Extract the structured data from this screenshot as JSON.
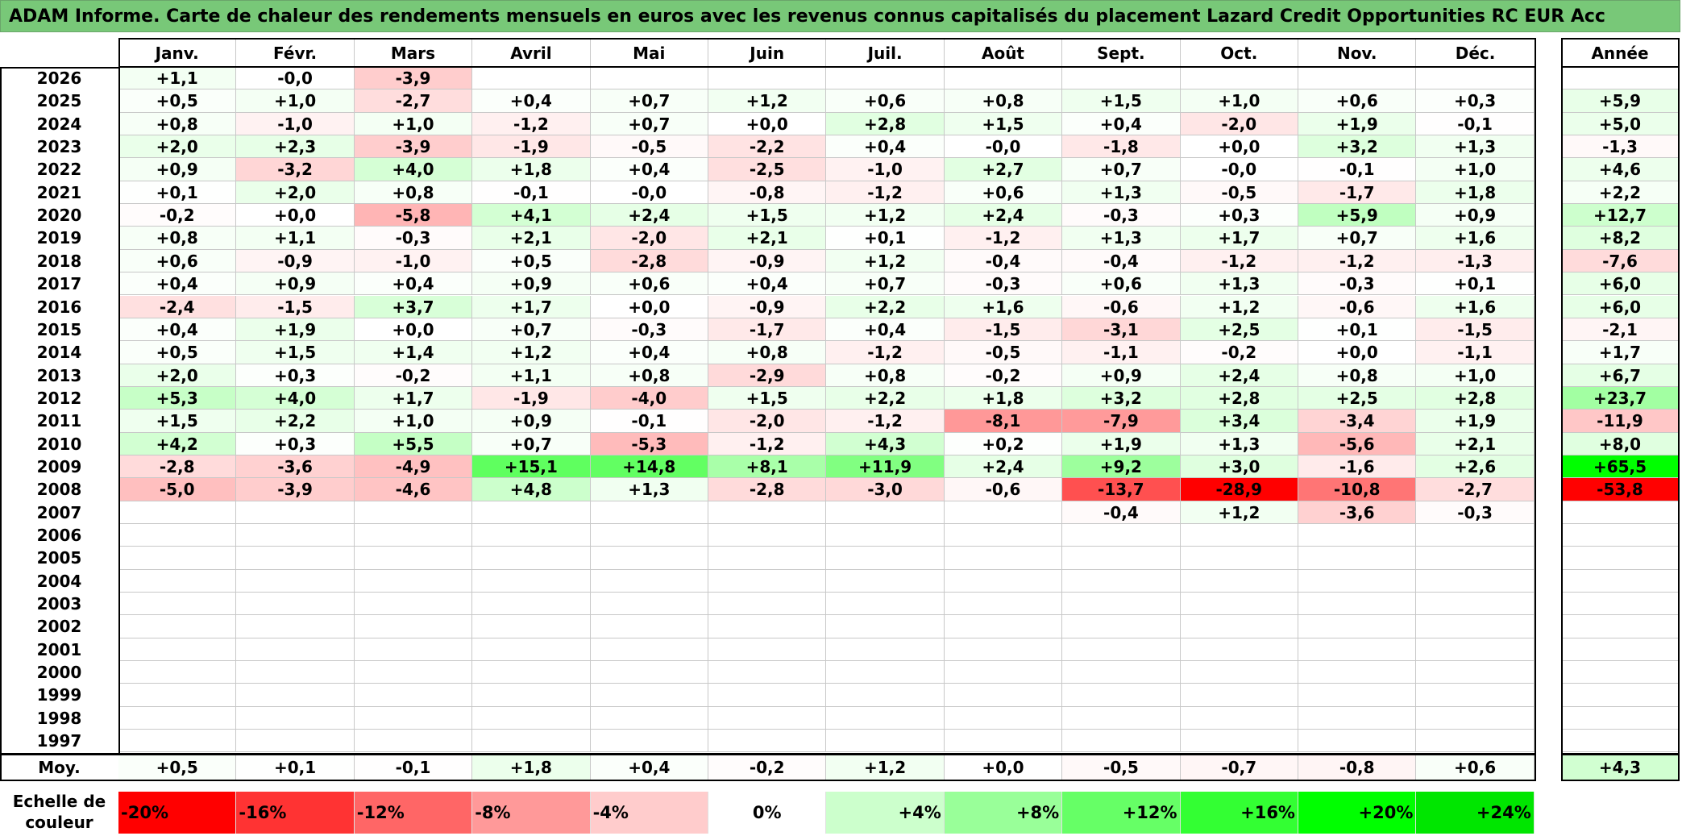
{
  "title": "ADAM Informe. Carte de chaleur des rendements mensuels en euros avec les revenus connus capitalisés du placement Lazard Credit Opportunities RC EUR Acc",
  "chart_data": {
    "type": "heatmap",
    "months": [
      "Janv.",
      "Févr.",
      "Mars",
      "Avril",
      "Mai",
      "Juin",
      "Juil.",
      "Août",
      "Sept.",
      "Oct.",
      "Nov.",
      "Déc."
    ],
    "year_header": "Année",
    "rows": [
      {
        "year": "2026",
        "values": [
          "+1,1",
          "-0,0",
          "-3,9",
          "",
          "",
          "",
          "",
          "",
          "",
          "",
          "",
          ""
        ],
        "annual": ""
      },
      {
        "year": "2025",
        "values": [
          "+0,5",
          "+1,0",
          "-2,7",
          "+0,4",
          "+0,7",
          "+1,2",
          "+0,6",
          "+0,8",
          "+1,5",
          "+1,0",
          "+0,6",
          "+0,3"
        ],
        "annual": "+5,9"
      },
      {
        "year": "2024",
        "values": [
          "+0,8",
          "-1,0",
          "+1,0",
          "-1,2",
          "+0,7",
          "+0,0",
          "+2,8",
          "+1,5",
          "+0,4",
          "-2,0",
          "+1,9",
          "-0,1"
        ],
        "annual": "+5,0"
      },
      {
        "year": "2023",
        "values": [
          "+2,0",
          "+2,3",
          "-3,9",
          "-1,9",
          "-0,5",
          "-2,2",
          "+0,4",
          "-0,0",
          "-1,8",
          "+0,0",
          "+3,2",
          "+1,3"
        ],
        "annual": "-1,3"
      },
      {
        "year": "2022",
        "values": [
          "+0,9",
          "-3,2",
          "+4,0",
          "+1,8",
          "+0,4",
          "-2,5",
          "-1,0",
          "+2,7",
          "+0,7",
          "-0,0",
          "-0,1",
          "+1,0"
        ],
        "annual": "+4,6"
      },
      {
        "year": "2021",
        "values": [
          "+0,1",
          "+2,0",
          "+0,8",
          "-0,1",
          "-0,0",
          "-0,8",
          "-1,2",
          "+0,6",
          "+1,3",
          "-0,5",
          "-1,7",
          "+1,8"
        ],
        "annual": "+2,2"
      },
      {
        "year": "2020",
        "values": [
          "-0,2",
          "+0,0",
          "-5,8",
          "+4,1",
          "+2,4",
          "+1,5",
          "+1,2",
          "+2,4",
          "-0,3",
          "+0,3",
          "+5,9",
          "+0,9"
        ],
        "annual": "+12,7"
      },
      {
        "year": "2019",
        "values": [
          "+0,8",
          "+1,1",
          "-0,3",
          "+2,1",
          "-2,0",
          "+2,1",
          "+0,1",
          "-1,2",
          "+1,3",
          "+1,7",
          "+0,7",
          "+1,6"
        ],
        "annual": "+8,2"
      },
      {
        "year": "2018",
        "values": [
          "+0,6",
          "-0,9",
          "-1,0",
          "+0,5",
          "-2,8",
          "-0,9",
          "+1,2",
          "-0,4",
          "-0,4",
          "-1,2",
          "-1,2",
          "-1,3"
        ],
        "annual": "-7,6"
      },
      {
        "year": "2017",
        "values": [
          "+0,4",
          "+0,9",
          "+0,4",
          "+0,9",
          "+0,6",
          "+0,4",
          "+0,7",
          "-0,3",
          "+0,6",
          "+1,3",
          "-0,3",
          "+0,1"
        ],
        "annual": "+6,0"
      },
      {
        "year": "2016",
        "values": [
          "-2,4",
          "-1,5",
          "+3,7",
          "+1,7",
          "+0,0",
          "-0,9",
          "+2,2",
          "+1,6",
          "-0,6",
          "+1,2",
          "-0,6",
          "+1,6"
        ],
        "annual": "+6,0"
      },
      {
        "year": "2015",
        "values": [
          "+0,4",
          "+1,9",
          "+0,0",
          "+0,7",
          "-0,3",
          "-1,7",
          "+0,4",
          "-1,5",
          "-3,1",
          "+2,5",
          "+0,1",
          "-1,5"
        ],
        "annual": "-2,1"
      },
      {
        "year": "2014",
        "values": [
          "+0,5",
          "+1,5",
          "+1,4",
          "+1,2",
          "+0,4",
          "+0,8",
          "-1,2",
          "-0,5",
          "-1,1",
          "-0,2",
          "+0,0",
          "-1,1"
        ],
        "annual": "+1,7"
      },
      {
        "year": "2013",
        "values": [
          "+2,0",
          "+0,3",
          "-0,2",
          "+1,1",
          "+0,8",
          "-2,9",
          "+0,8",
          "-0,2",
          "+0,9",
          "+2,4",
          "+0,8",
          "+1,0"
        ],
        "annual": "+6,7"
      },
      {
        "year": "2012",
        "values": [
          "+5,3",
          "+4,0",
          "+1,7",
          "-1,9",
          "-4,0",
          "+1,5",
          "+2,2",
          "+1,8",
          "+3,2",
          "+2,8",
          "+2,5",
          "+2,8"
        ],
        "annual": "+23,7"
      },
      {
        "year": "2011",
        "values": [
          "+1,5",
          "+2,2",
          "+1,0",
          "+0,9",
          "-0,1",
          "-2,0",
          "-1,2",
          "-8,1",
          "-7,9",
          "+3,4",
          "-3,4",
          "+1,9"
        ],
        "annual": "-11,9"
      },
      {
        "year": "2010",
        "values": [
          "+4,2",
          "+0,3",
          "+5,5",
          "+0,7",
          "-5,3",
          "-1,2",
          "+4,3",
          "+0,2",
          "+1,9",
          "+1,3",
          "-5,6",
          "+2,1"
        ],
        "annual": "+8,0"
      },
      {
        "year": "2009",
        "values": [
          "-2,8",
          "-3,6",
          "-4,9",
          "+15,1",
          "+14,8",
          "+8,1",
          "+11,9",
          "+2,4",
          "+9,2",
          "+3,0",
          "-1,6",
          "+2,6"
        ],
        "annual": "+65,5"
      },
      {
        "year": "2008",
        "values": [
          "-5,0",
          "-3,9",
          "-4,6",
          "+4,8",
          "+1,3",
          "-2,8",
          "-3,0",
          "-0,6",
          "-13,7",
          "-28,9",
          "-10,8",
          "-2,7"
        ],
        "annual": "-53,8"
      },
      {
        "year": "2007",
        "values": [
          "",
          "",
          "",
          "",
          "",
          "",
          "",
          "",
          "-0,4",
          "+1,2",
          "-3,6",
          "-0,3"
        ],
        "annual": ""
      },
      {
        "year": "2006",
        "values": [
          "",
          "",
          "",
          "",
          "",
          "",
          "",
          "",
          "",
          "",
          "",
          ""
        ],
        "annual": ""
      },
      {
        "year": "2005",
        "values": [
          "",
          "",
          "",
          "",
          "",
          "",
          "",
          "",
          "",
          "",
          "",
          ""
        ],
        "annual": ""
      },
      {
        "year": "2004",
        "values": [
          "",
          "",
          "",
          "",
          "",
          "",
          "",
          "",
          "",
          "",
          "",
          ""
        ],
        "annual": ""
      },
      {
        "year": "2003",
        "values": [
          "",
          "",
          "",
          "",
          "",
          "",
          "",
          "",
          "",
          "",
          "",
          ""
        ],
        "annual": ""
      },
      {
        "year": "2002",
        "values": [
          "",
          "",
          "",
          "",
          "",
          "",
          "",
          "",
          "",
          "",
          "",
          ""
        ],
        "annual": ""
      },
      {
        "year": "2001",
        "values": [
          "",
          "",
          "",
          "",
          "",
          "",
          "",
          "",
          "",
          "",
          "",
          ""
        ],
        "annual": ""
      },
      {
        "year": "2000",
        "values": [
          "",
          "",
          "",
          "",
          "",
          "",
          "",
          "",
          "",
          "",
          "",
          ""
        ],
        "annual": ""
      },
      {
        "year": "1999",
        "values": [
          "",
          "",
          "",
          "",
          "",
          "",
          "",
          "",
          "",
          "",
          "",
          ""
        ],
        "annual": ""
      },
      {
        "year": "1998",
        "values": [
          "",
          "",
          "",
          "",
          "",
          "",
          "",
          "",
          "",
          "",
          "",
          ""
        ],
        "annual": ""
      },
      {
        "year": "1997",
        "values": [
          "",
          "",
          "",
          "",
          "",
          "",
          "",
          "",
          "",
          "",
          "",
          ""
        ],
        "annual": ""
      }
    ],
    "average": {
      "label": "Moy.",
      "values": [
        "+0,5",
        "+0,1",
        "-0,1",
        "+1,8",
        "+0,4",
        "-0,2",
        "+1,2",
        "+0,0",
        "-0,5",
        "-0,7",
        "-0,8",
        "+0,6"
      ],
      "annual": "+4,3"
    },
    "scale": {
      "label_line1": "Echelle de",
      "label_line2": "couleur",
      "steps": [
        "-20%",
        "-16%",
        "-12%",
        "-8%",
        "-4%",
        "0%",
        "+4%",
        "+8%",
        "+12%",
        "+16%",
        "+20%",
        "+24%"
      ],
      "colors": [
        "#ff0000",
        "#ff3333",
        "#ff6666",
        "#ff9999",
        "#ffcccc",
        "#ffffff",
        "#ccffcc",
        "#99ff99",
        "#66ff66",
        "#33ff33",
        "#00ff00",
        "#00e600"
      ]
    },
    "negative_color": "#ff0000",
    "positive_color": "#00e000"
  }
}
